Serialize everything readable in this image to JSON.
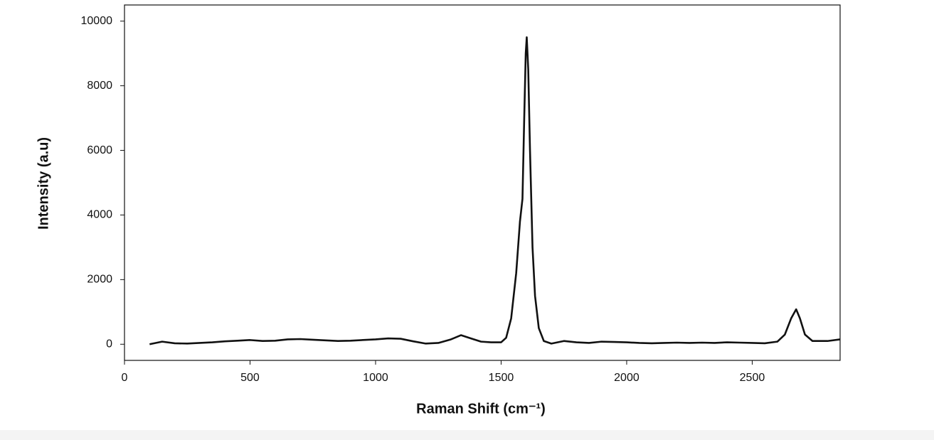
{
  "chart_data": {
    "type": "line",
    "xlabel": "Raman Shift (cm⁻¹)",
    "ylabel": "Intensity (a.u)",
    "xlim": [
      0,
      2850
    ],
    "xticks": [
      0,
      500,
      1000,
      1500,
      2000,
      2500
    ],
    "ylim": [
      -500,
      10500
    ],
    "yticks": [
      0,
      2000,
      4000,
      6000,
      8000,
      10000
    ],
    "grid": false,
    "series": [
      {
        "color": "#111111",
        "x": [
          100,
          150,
          200,
          250,
          300,
          350,
          400,
          450,
          500,
          550,
          600,
          650,
          700,
          750,
          800,
          850,
          900,
          950,
          1000,
          1050,
          1100,
          1150,
          1200,
          1250,
          1300,
          1340,
          1380,
          1420,
          1460,
          1500,
          1520,
          1540,
          1560,
          1575,
          1585,
          1592,
          1598,
          1602,
          1608,
          1615,
          1625,
          1635,
          1650,
          1670,
          1700,
          1750,
          1800,
          1850,
          1900,
          1950,
          2000,
          2050,
          2100,
          2150,
          2200,
          2250,
          2300,
          2350,
          2400,
          2450,
          2500,
          2550,
          2600,
          2630,
          2655,
          2675,
          2690,
          2710,
          2740,
          2800,
          2850
        ],
        "values": [
          0,
          80,
          30,
          20,
          40,
          60,
          90,
          110,
          130,
          100,
          110,
          150,
          160,
          140,
          120,
          100,
          110,
          130,
          150,
          180,
          170,
          90,
          20,
          40,
          150,
          280,
          180,
          80,
          60,
          60,
          200,
          800,
          2200,
          3800,
          4500,
          7000,
          9000,
          9500,
          8500,
          6000,
          3000,
          1500,
          500,
          100,
          20,
          100,
          60,
          40,
          80,
          70,
          60,
          40,
          30,
          40,
          50,
          40,
          50,
          40,
          60,
          50,
          40,
          30,
          80,
          300,
          800,
          1080,
          800,
          300,
          100,
          100,
          150
        ]
      }
    ]
  }
}
